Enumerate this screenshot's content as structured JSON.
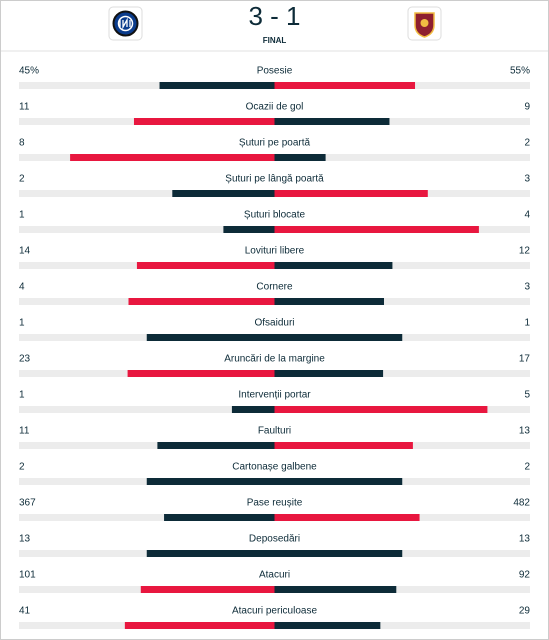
{
  "header": {
    "score": "3 - 1",
    "status": "FINAL"
  },
  "stats": [
    {
      "label": "Posesie",
      "home": 45,
      "home_label": "45%",
      "away": 55,
      "away_label": "55%"
    },
    {
      "label": "Ocazii de gol",
      "home": 11,
      "away": 9
    },
    {
      "label": "Șuturi pe poartă",
      "home": 8,
      "away": 2
    },
    {
      "label": "Șuturi pe lângă poartă",
      "home": 2,
      "away": 3
    },
    {
      "label": "Șuturi blocate",
      "home": 1,
      "away": 4
    },
    {
      "label": "Lovituri libere",
      "home": 14,
      "away": 12
    },
    {
      "label": "Cornere",
      "home": 4,
      "away": 3
    },
    {
      "label": "Ofsaiduri",
      "home": 1,
      "away": 1
    },
    {
      "label": "Aruncări de la margine",
      "home": 23,
      "away": 17
    },
    {
      "label": "Intervenții portar",
      "home": 1,
      "away": 5
    },
    {
      "label": "Faulturi",
      "home": 11,
      "away": 13
    },
    {
      "label": "Cartonașe galbene",
      "home": 2,
      "away": 2
    },
    {
      "label": "Pase reușite",
      "home": 367,
      "away": 482
    },
    {
      "label": "Deposedări",
      "home": 13,
      "away": 13
    },
    {
      "label": "Atacuri",
      "home": 101,
      "away": 92
    },
    {
      "label": "Atacuri periculoase",
      "home": 41,
      "away": 29
    }
  ]
}
